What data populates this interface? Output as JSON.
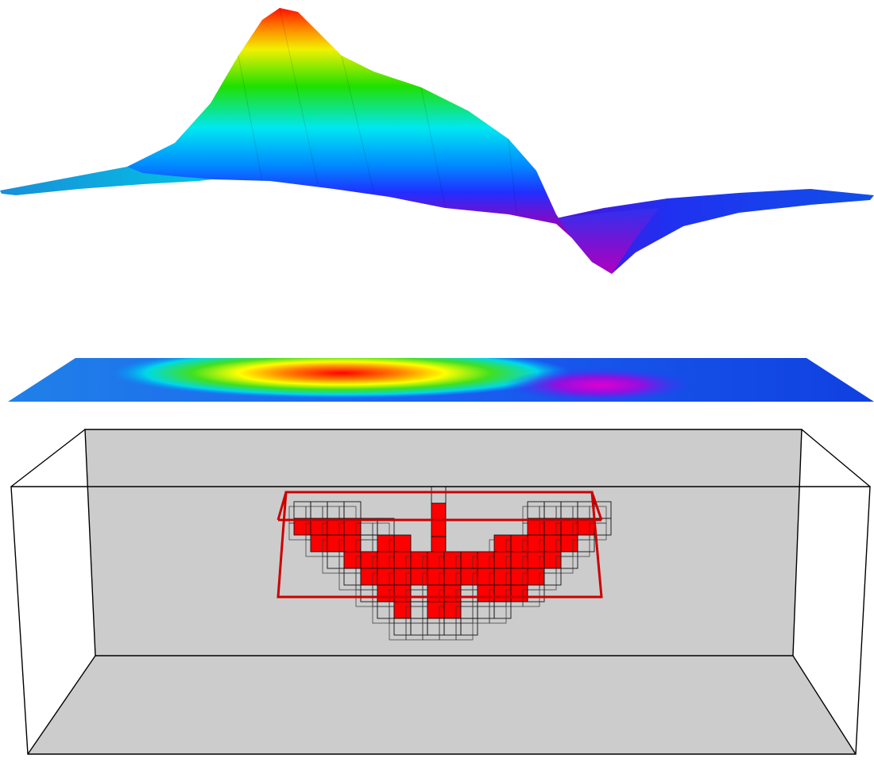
{
  "figure": {
    "panels": [
      {
        "name": "surface-3d",
        "kind": "3D surface relief of field (positive peak and negative trough)"
      },
      {
        "name": "surface-map",
        "kind": "flat colored map of same field"
      },
      {
        "name": "voxel-model",
        "kind": "3D block model with red anomaly voxels inside gray box"
      }
    ],
    "colormap": [
      "#8000c0",
      "#c000d0",
      "#3030ff",
      "#0060ff",
      "#00c0ff",
      "#00f0d0",
      "#00e000",
      "#c0ff00",
      "#ffff00",
      "#ff8000",
      "#ff0000"
    ],
    "box": {
      "wall_color": "#cccccc",
      "edge_color": "#000000",
      "anomaly_color": "#ff0000",
      "outline_color": "#cc0000"
    }
  }
}
